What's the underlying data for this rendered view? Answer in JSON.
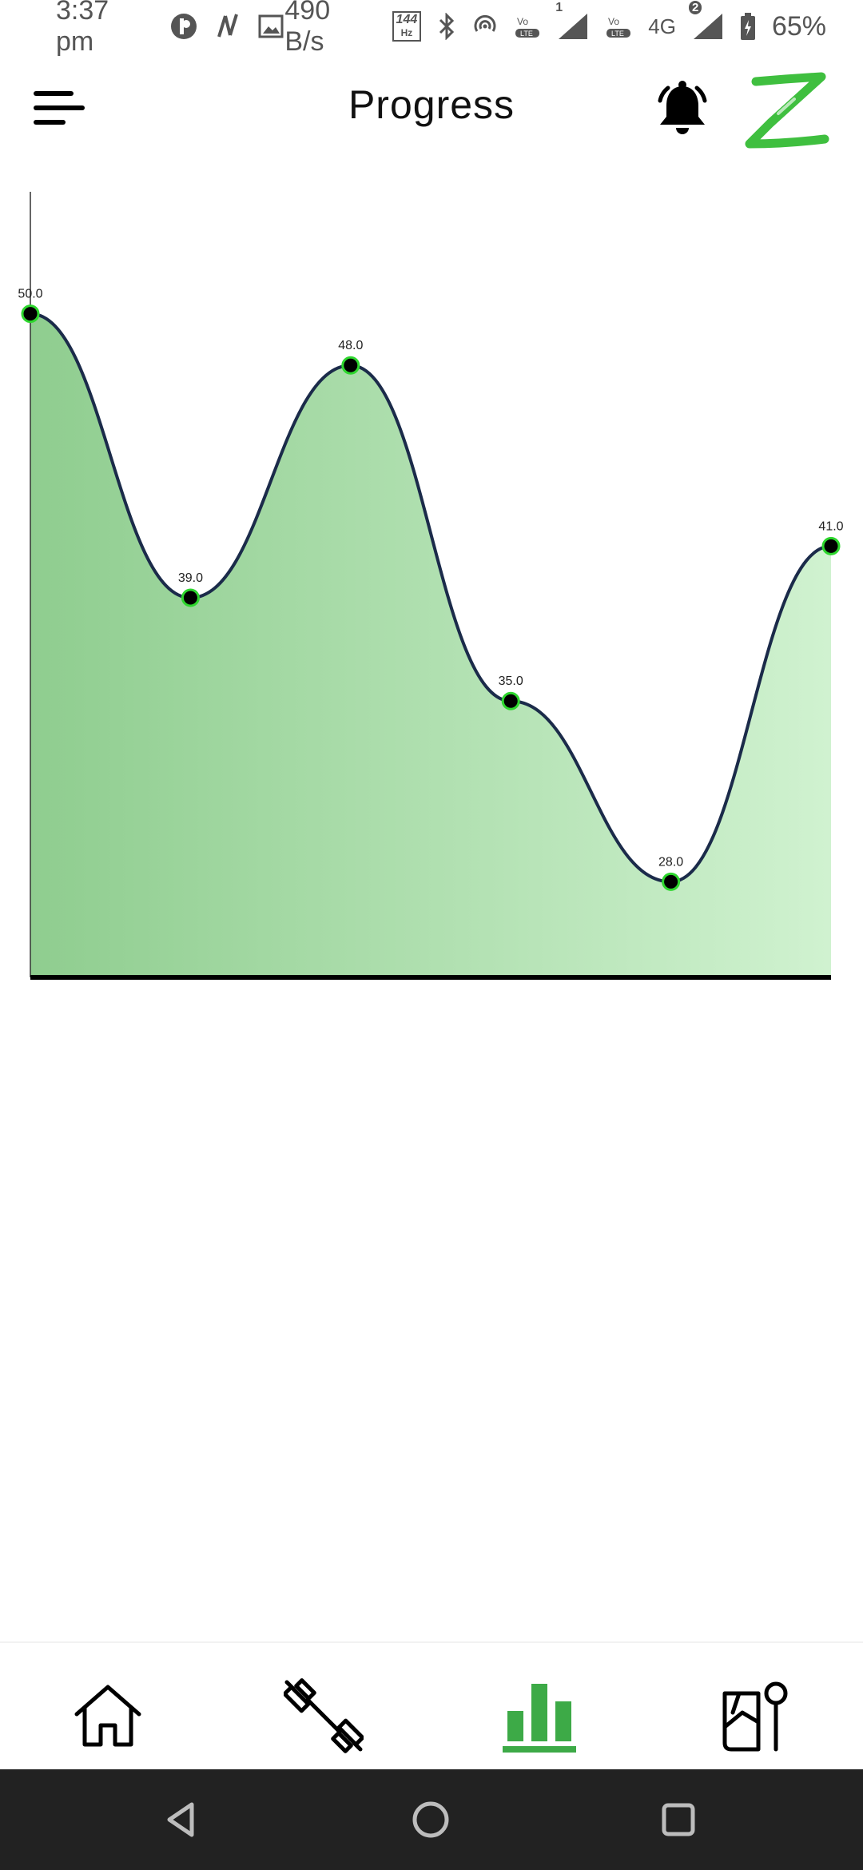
{
  "status_bar": {
    "time": "3:37 pm",
    "network_speed": "490 B/s",
    "refresh_rate": "144",
    "refresh_unit": "Hz",
    "sim1_label": "1",
    "sim2_label": "2",
    "network_type": "4G",
    "battery": "65%"
  },
  "header": {
    "title": "Progress",
    "menu_icon": "hamburger-menu-icon",
    "notification_icon": "bell-icon",
    "logo_letter": "Z",
    "logo_color": "#3fbf3f"
  },
  "chart_data": {
    "type": "area",
    "x": [
      1,
      2,
      3,
      4,
      5,
      6
    ],
    "values": [
      50.0,
      39.0,
      48.0,
      35.0,
      28.0,
      41.0
    ],
    "value_labels": [
      "50.0",
      "39.0",
      "48.0",
      "35.0",
      "28.0",
      "41.0"
    ],
    "ylim": [
      26,
      52
    ],
    "smooth": true,
    "line_color": "#1b2b4a",
    "fill_gradient": [
      "#8fcd8f",
      "#d0f2d0"
    ],
    "point_fill": "#000000",
    "point_stroke": "#2ed62e",
    "grid": false,
    "title": "",
    "xlabel": "",
    "ylabel": ""
  },
  "bottom_nav": {
    "items": [
      {
        "icon": "home-icon",
        "active": false
      },
      {
        "icon": "dumbbell-icon",
        "active": false
      },
      {
        "icon": "bar-chart-icon",
        "active": true
      },
      {
        "icon": "food-tracker-icon",
        "active": false
      }
    ],
    "active_color": "#3daa47"
  },
  "system_nav": {
    "buttons": [
      "back-icon",
      "home-circle-icon",
      "recents-icon"
    ]
  }
}
